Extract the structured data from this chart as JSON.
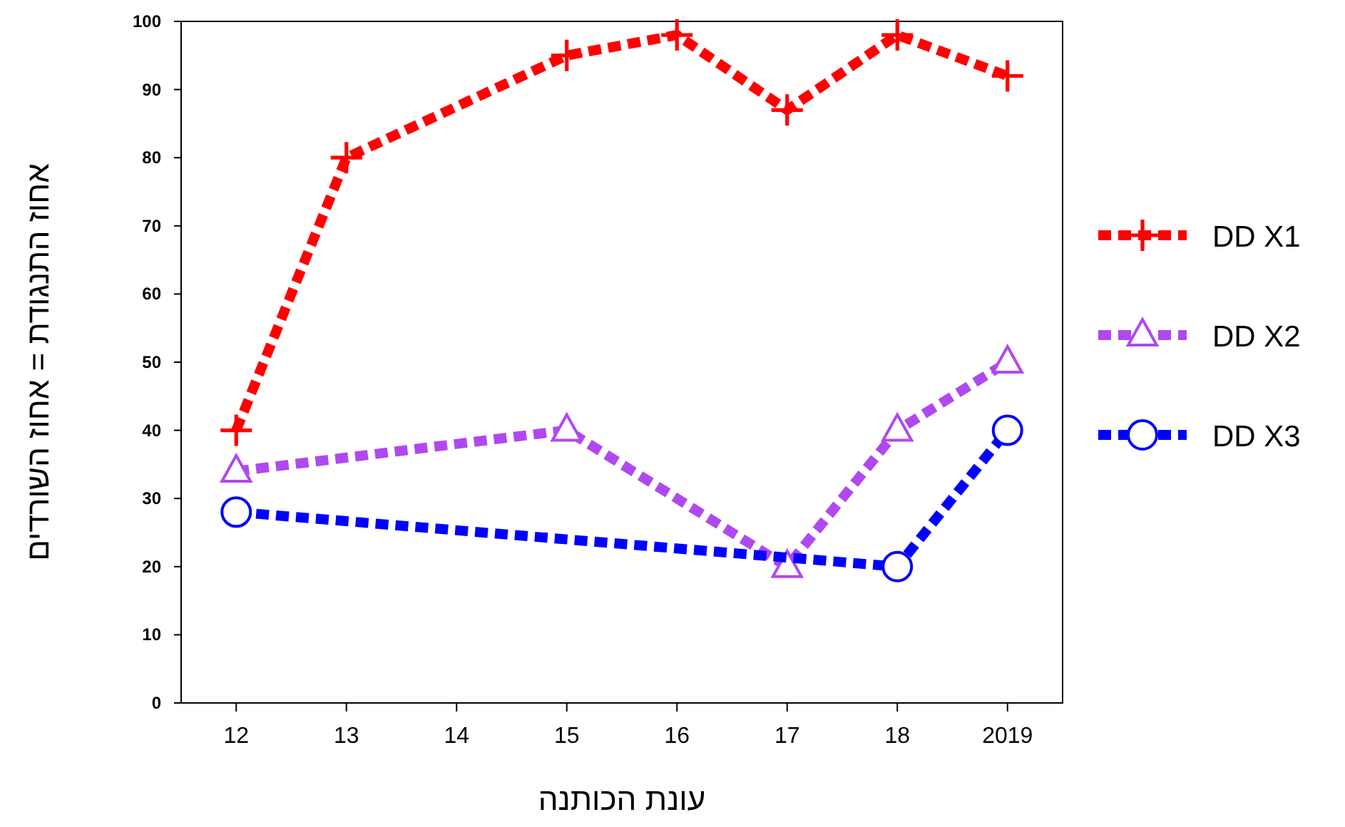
{
  "chart_data": {
    "type": "line",
    "xlabel": "עונת הכותנה",
    "ylabel": "אחוז התנגודת = אחוז השורדים",
    "categories": [
      "12",
      "13",
      "14",
      "15",
      "16",
      "17",
      "18",
      "2019"
    ],
    "ylim": [
      0,
      100
    ],
    "yticks": [
      0,
      10,
      20,
      30,
      40,
      50,
      60,
      70,
      80,
      90,
      100
    ],
    "grid": false,
    "legend": "right",
    "line_style": "dashed",
    "series": [
      {
        "name": "DD X1",
        "color": "#ff0000",
        "marker": "cross",
        "values": [
          40,
          80,
          null,
          95,
          98,
          87,
          98,
          92
        ]
      },
      {
        "name": "DD X2",
        "color": "#b048f0",
        "marker": "triangle",
        "values": [
          34,
          null,
          null,
          40,
          null,
          20,
          40,
          50
        ]
      },
      {
        "name": "DD X3",
        "color": "#0000ff",
        "marker": "circle",
        "values": [
          28,
          null,
          null,
          null,
          null,
          null,
          20,
          40
        ]
      }
    ]
  }
}
